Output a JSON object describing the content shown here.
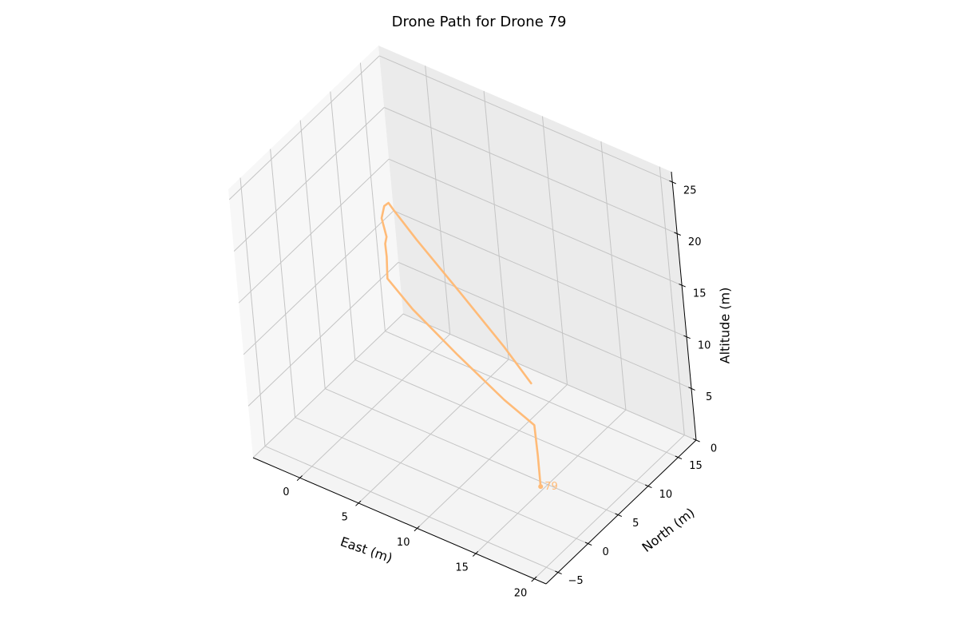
{
  "chart_data": {
    "type": "line3d",
    "title": "Drone Path for Drone 79",
    "xlabel": "East (m)",
    "ylabel": "North (m)",
    "zlabel": "Altitude (m)",
    "xlim": [
      -4,
      21
    ],
    "ylim": [
      -7,
      18
    ],
    "zlim": [
      0,
      26
    ],
    "x_ticks": [
      0,
      5,
      10,
      15,
      20
    ],
    "y_ticks": [
      -5,
      0,
      5,
      10,
      15
    ],
    "z_ticks": [
      0,
      5,
      10,
      15,
      20,
      25
    ],
    "x_tick_labels": [
      "0",
      "5",
      "10",
      "15",
      "20"
    ],
    "y_tick_labels": [
      "−5",
      "0",
      "5",
      "10",
      "15"
    ],
    "z_tick_labels": [
      "0",
      "5",
      "10",
      "15",
      "20",
      "25"
    ],
    "grid": true,
    "series": [
      {
        "color": "#ffbb78",
        "x": [
          14.7,
          14.7,
          14.7,
          12.4,
          9.0,
          5.6,
          3.6,
          3.6,
          3.4,
          3.4,
          3.0,
          3.1,
          3.5,
          3.9,
          5.7,
          9.2,
          12.6,
          14.7
        ],
        "y": [
          4.4,
          4.4,
          4.3,
          4.0,
          3.4,
          3.0,
          3.0,
          3.2,
          3.5,
          3.8,
          4.0,
          4.4,
          4.4,
          4.4,
          4.4,
          4.4,
          4.4,
          4.4
        ],
        "z": [
          0,
          3,
          6,
          7.5,
          10.5,
          13.5,
          15.5,
          17.5,
          18.5,
          19,
          20.5,
          21.5,
          22,
          21.5,
          19.5,
          16,
          12.5,
          10
        ]
      }
    ],
    "annotations": [
      {
        "text": "79",
        "x": 14.7,
        "y": 4.4,
        "z": 0,
        "color": "#ffbb78"
      }
    ]
  }
}
